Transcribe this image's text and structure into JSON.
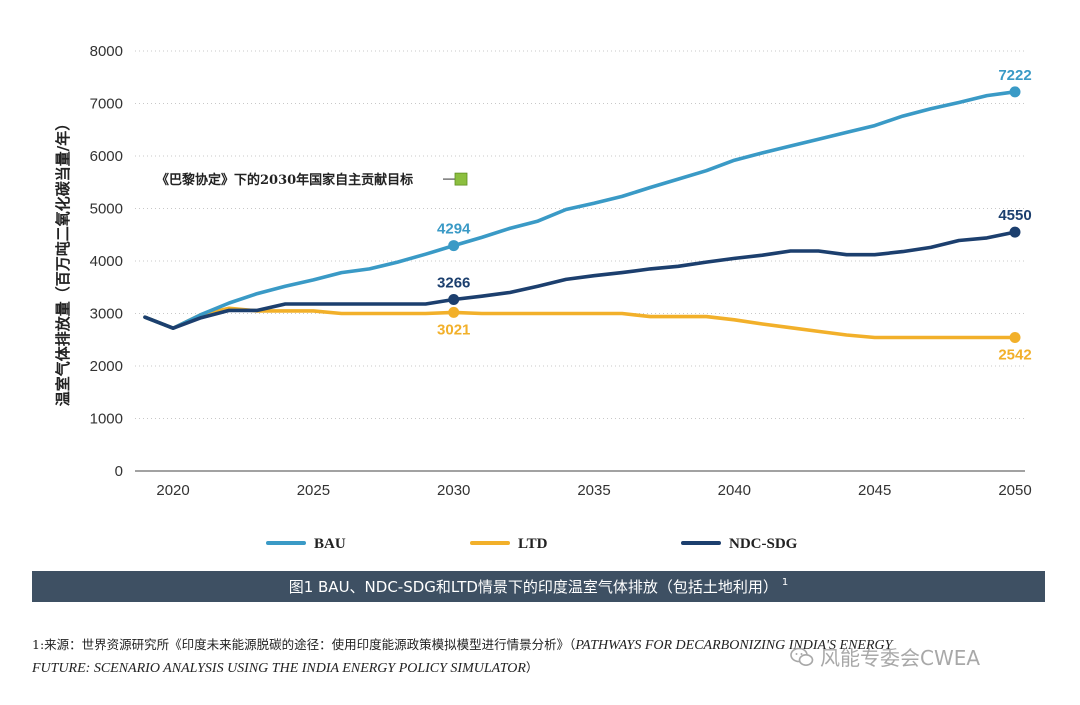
{
  "chart_data": {
    "type": "line",
    "ylabel": "温室气体排放量（百万吨二氧化碳当量/年）",
    "xlabel": "",
    "xlim": [
      2019,
      2050
    ],
    "ylim": [
      0,
      8000
    ],
    "x_ticks": [
      2020,
      2025,
      2030,
      2035,
      2040,
      2045,
      2050
    ],
    "y_ticks": [
      0,
      1000,
      2000,
      3000,
      4000,
      5000,
      6000,
      7000,
      8000
    ],
    "grid": "horizontal dotted",
    "series": [
      {
        "name": "BAU",
        "color": "#3a9ac6",
        "points": [
          [
            2019,
            2930
          ],
          [
            2020,
            2720
          ],
          [
            2021,
            2980
          ],
          [
            2022,
            3200
          ],
          [
            2023,
            3380
          ],
          [
            2024,
            3520
          ],
          [
            2025,
            3640
          ],
          [
            2026,
            3780
          ],
          [
            2027,
            3850
          ],
          [
            2028,
            3980
          ],
          [
            2029,
            4130
          ],
          [
            2030,
            4294
          ],
          [
            2031,
            4450
          ],
          [
            2032,
            4620
          ],
          [
            2033,
            4760
          ],
          [
            2034,
            4980
          ],
          [
            2035,
            5100
          ],
          [
            2036,
            5230
          ],
          [
            2037,
            5400
          ],
          [
            2038,
            5560
          ],
          [
            2039,
            5720
          ],
          [
            2040,
            5920
          ],
          [
            2041,
            6060
          ],
          [
            2042,
            6190
          ],
          [
            2043,
            6320
          ],
          [
            2044,
            6450
          ],
          [
            2045,
            6580
          ],
          [
            2046,
            6760
          ],
          [
            2047,
            6900
          ],
          [
            2048,
            7020
          ],
          [
            2049,
            7150
          ],
          [
            2050,
            7222
          ]
        ]
      },
      {
        "name": "LTD",
        "color": "#f2b02a",
        "points": [
          [
            2019,
            2930
          ],
          [
            2020,
            2720
          ],
          [
            2021,
            2980
          ],
          [
            2022,
            3100
          ],
          [
            2023,
            3050
          ],
          [
            2024,
            3050
          ],
          [
            2025,
            3050
          ],
          [
            2026,
            3000
          ],
          [
            2027,
            3000
          ],
          [
            2028,
            3000
          ],
          [
            2029,
            3000
          ],
          [
            2030,
            3021
          ],
          [
            2031,
            3000
          ],
          [
            2032,
            3000
          ],
          [
            2033,
            3000
          ],
          [
            2034,
            3000
          ],
          [
            2035,
            3000
          ],
          [
            2036,
            3000
          ],
          [
            2037,
            2940
          ],
          [
            2038,
            2940
          ],
          [
            2039,
            2940
          ],
          [
            2040,
            2880
          ],
          [
            2041,
            2800
          ],
          [
            2042,
            2730
          ],
          [
            2043,
            2660
          ],
          [
            2044,
            2590
          ],
          [
            2045,
            2542
          ],
          [
            2046,
            2542
          ],
          [
            2047,
            2542
          ],
          [
            2048,
            2542
          ],
          [
            2049,
            2542
          ],
          [
            2050,
            2542
          ]
        ]
      },
      {
        "name": "NDC-SDG",
        "color": "#1c3f6e",
        "points": [
          [
            2019,
            2930
          ],
          [
            2020,
            2720
          ],
          [
            2021,
            2920
          ],
          [
            2022,
            3060
          ],
          [
            2023,
            3060
          ],
          [
            2024,
            3180
          ],
          [
            2025,
            3180
          ],
          [
            2026,
            3180
          ],
          [
            2027,
            3180
          ],
          [
            2028,
            3180
          ],
          [
            2029,
            3180
          ],
          [
            2030,
            3266
          ],
          [
            2031,
            3330
          ],
          [
            2032,
            3400
          ],
          [
            2033,
            3520
          ],
          [
            2034,
            3650
          ],
          [
            2035,
            3720
          ],
          [
            2036,
            3780
          ],
          [
            2037,
            3850
          ],
          [
            2038,
            3900
          ],
          [
            2039,
            3980
          ],
          [
            2040,
            4050
          ],
          [
            2041,
            4110
          ],
          [
            2042,
            4190
          ],
          [
            2043,
            4190
          ],
          [
            2044,
            4120
          ],
          [
            2045,
            4120
          ],
          [
            2046,
            4180
          ],
          [
            2047,
            4260
          ],
          [
            2048,
            4390
          ],
          [
            2049,
            4440
          ],
          [
            2050,
            4550
          ]
        ]
      }
    ],
    "data_labels": [
      {
        "series": "BAU",
        "x": 2030,
        "y": 4294,
        "text": "4294",
        "color": "#3a9ac6",
        "pos": "above"
      },
      {
        "series": "BAU",
        "x": 2050,
        "y": 7222,
        "text": "7222",
        "color": "#3a9ac6",
        "pos": "above"
      },
      {
        "series": "NDC-SDG",
        "x": 2030,
        "y": 3266,
        "text": "3266",
        "color": "#1c3f6e",
        "pos": "above"
      },
      {
        "series": "NDC-SDG",
        "x": 2050,
        "y": 4550,
        "text": "4550",
        "color": "#1c3f6e",
        "pos": "above"
      },
      {
        "series": "LTD",
        "x": 2030,
        "y": 3021,
        "text": "3021",
        "color": "#f2b02a",
        "pos": "below"
      },
      {
        "series": "LTD",
        "x": 2050,
        "y": 2542,
        "text": "2542",
        "color": "#f2b02a",
        "pos": "below"
      }
    ],
    "annotation": {
      "text": "《巴黎协定》下的2030年国家自主贡献目标",
      "y": 5560,
      "marker_color": "#8cbf3f"
    },
    "legend": [
      "BAU",
      "LTD",
      "NDC-SDG"
    ],
    "legend_position": "bottom"
  },
  "caption": {
    "text": "图1 BAU、NDC-SDG和LTD情景下的印度温室气体排放（包括土地利用）",
    "sup": "1"
  },
  "footnote": {
    "prefix": "1:来源：世界资源研究所《印度未来能源脱碳的途径：使用印度能源政策模拟模型进行情景分析》（",
    "italic1": "PATHWAYS FOR DECARBONIZING INDIA'S ENERGY",
    "italic2": "FUTURE: SCENARIO ANALYSIS USING THE INDIA ENERGY POLICY SIMULATOR",
    "suffix": "）"
  },
  "watermark": {
    "text": "风能专委会CWEA",
    "icon": "wechat-icon"
  }
}
